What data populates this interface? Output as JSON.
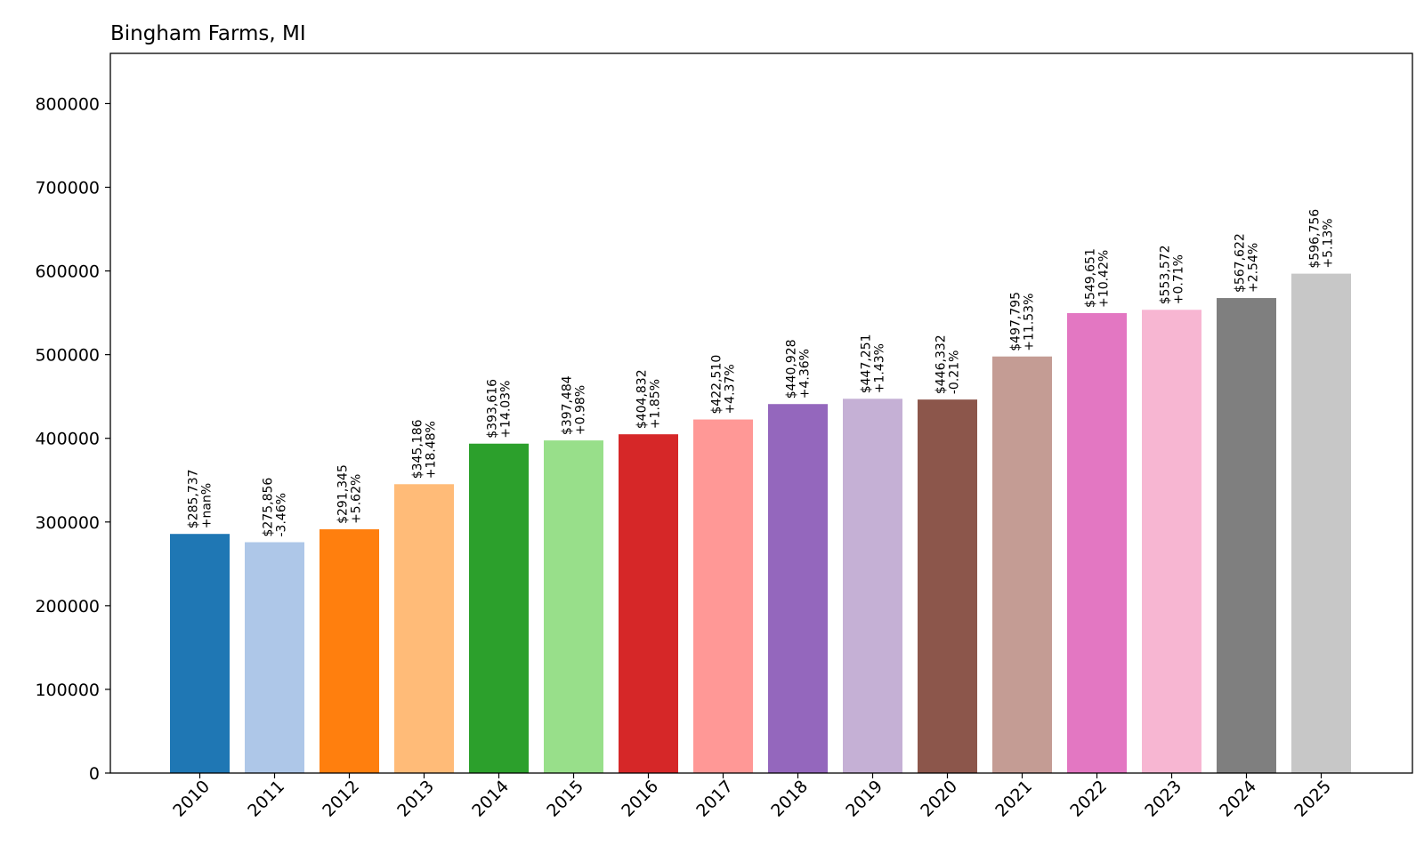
{
  "chart_data": {
    "type": "bar",
    "title": "Bingham Farms, MI",
    "xlabel": "",
    "ylabel": "",
    "ylim": [
      0,
      860000
    ],
    "yticks": [
      0,
      100000,
      200000,
      300000,
      400000,
      500000,
      600000,
      700000,
      800000
    ],
    "grid": false,
    "legend": "none",
    "categories": [
      "2010",
      "2011",
      "2012",
      "2013",
      "2014",
      "2015",
      "2016",
      "2017",
      "2018",
      "2019",
      "2020",
      "2021",
      "2022",
      "2023",
      "2024",
      "2025"
    ],
    "values": [
      285737,
      275856,
      291345,
      345186,
      393616,
      397484,
      404832,
      422510,
      440928,
      447251,
      446332,
      497795,
      549651,
      553572,
      567622,
      596756
    ],
    "value_labels": [
      "$285,737",
      "$275,856",
      "$291,345",
      "$345,186",
      "$393,616",
      "$397,484",
      "$404,832",
      "$422,510",
      "$440,928",
      "$447,251",
      "$446,332",
      "$497,795",
      "$549,651",
      "$553,572",
      "$567,622",
      "$596,756"
    ],
    "change_labels": [
      "+nan%",
      "-3.46%",
      "+5.62%",
      "+18.48%",
      "+14.03%",
      "+0.98%",
      "+1.85%",
      "+4.37%",
      "+4.36%",
      "+1.43%",
      "-0.21%",
      "+11.53%",
      "+10.42%",
      "+0.71%",
      "+2.54%",
      "+5.13%"
    ],
    "colors": [
      "#1f77b4",
      "#aec7e8",
      "#ff7f0e",
      "#ffbb78",
      "#2ca02c",
      "#98df8a",
      "#d62728",
      "#ff9896",
      "#9467bd",
      "#c5b0d5",
      "#8c564b",
      "#c49c94",
      "#e377c2",
      "#f7b6d2",
      "#7f7f7f",
      "#c7c7c7"
    ]
  }
}
